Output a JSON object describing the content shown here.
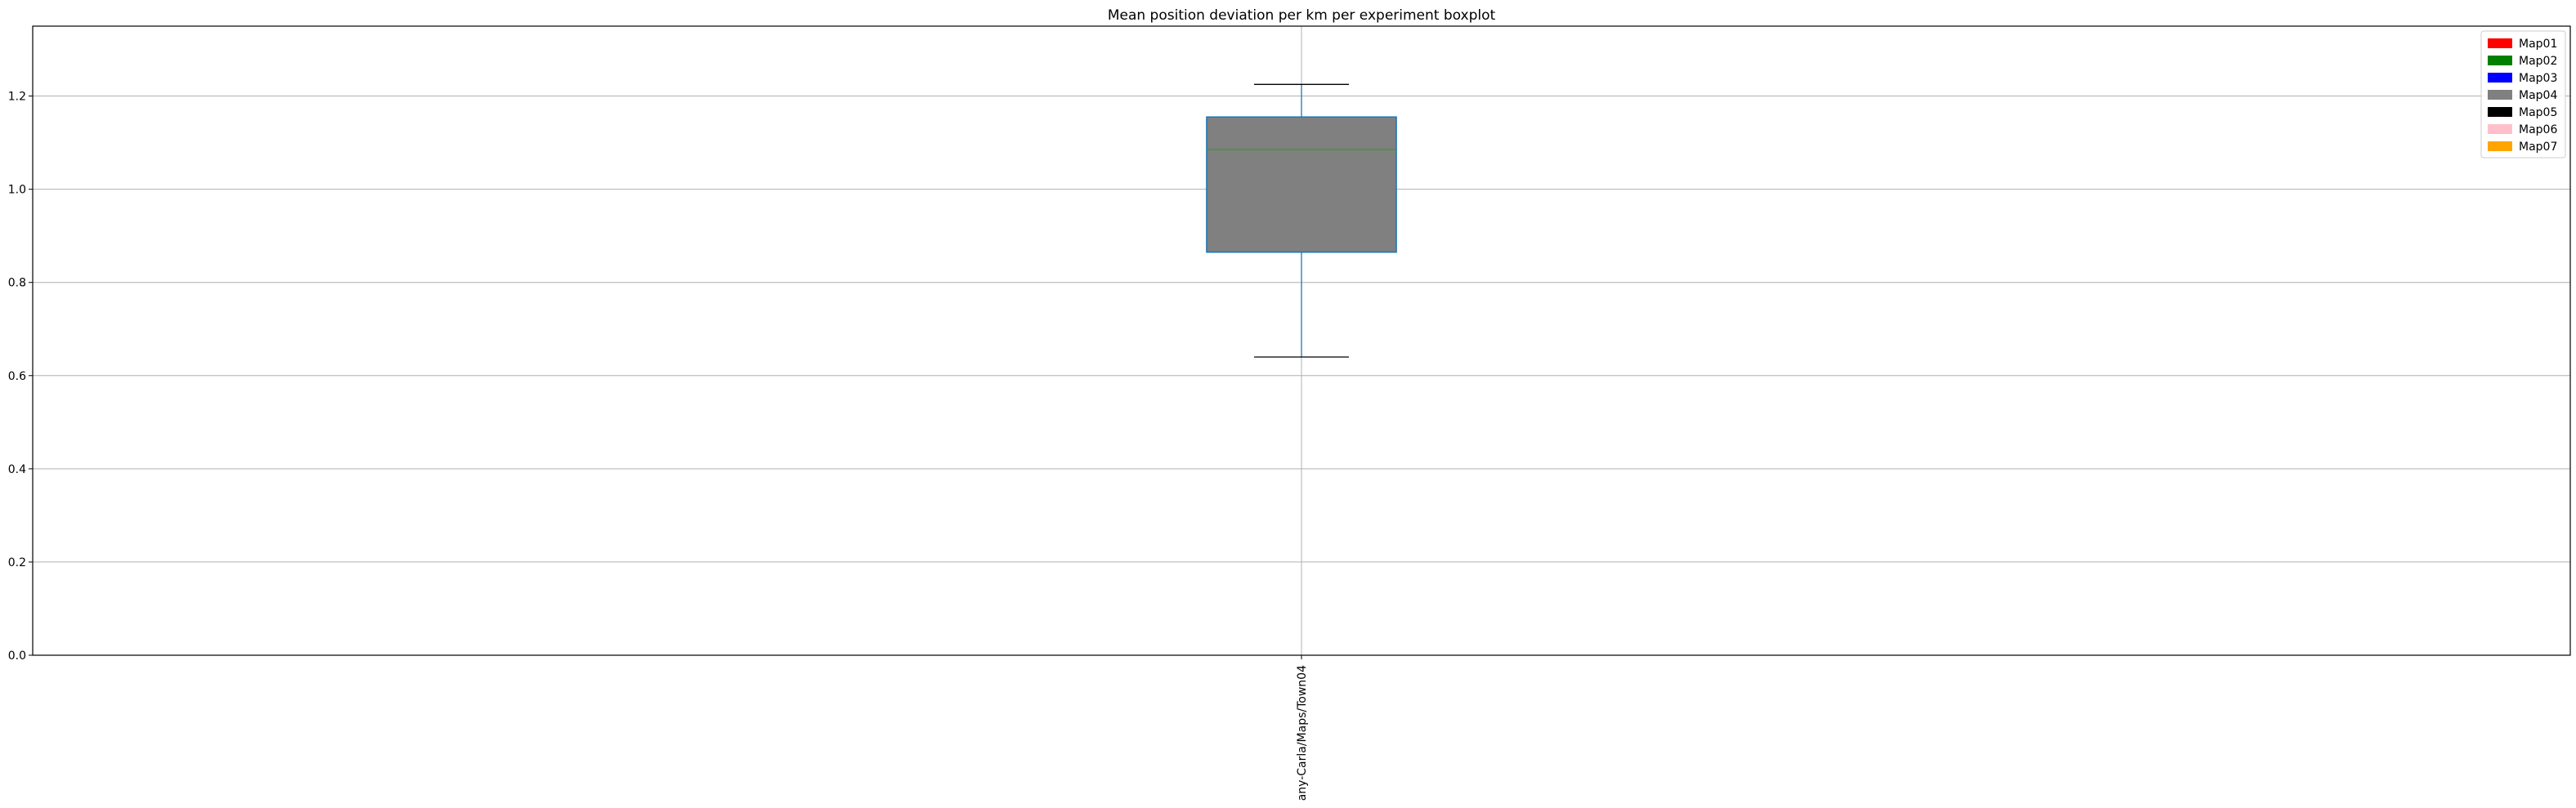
{
  "chart_data": {
    "type": "boxplot",
    "title": "Mean position deviation per km per experiment boxplot",
    "xlabel": "",
    "ylabel": "",
    "ylim": [
      0,
      1.35
    ],
    "yticks": [
      "0.0",
      "0.2",
      "0.4",
      "0.6",
      "0.8",
      "1.0",
      "1.2"
    ],
    "yticks_values": [
      0,
      0.2,
      0.4,
      0.6,
      0.8,
      1.0,
      1.2
    ],
    "grid": true,
    "categories": [
      "any-Carla/Maps/Town04"
    ],
    "boxes": [
      {
        "category": "any-Carla/Maps/Town04",
        "whisker_low": 0.64,
        "q1": 0.865,
        "median": 1.085,
        "q3": 1.155,
        "whisker_high": 1.225,
        "fill": "#808080",
        "edge": "#1f77b4",
        "median_color": "#2ca02c"
      }
    ],
    "legend": {
      "placement": "top-right",
      "entries": [
        {
          "label": "Map01",
          "color": "#ff0000"
        },
        {
          "label": "Map02",
          "color": "#008000"
        },
        {
          "label": "Map03",
          "color": "#0000ff"
        },
        {
          "label": "Map04",
          "color": "#808080"
        },
        {
          "label": "Map05",
          "color": "#000000"
        },
        {
          "label": "Map06",
          "color": "#ffc0cb"
        },
        {
          "label": "Map07",
          "color": "#ffa500"
        }
      ]
    }
  }
}
